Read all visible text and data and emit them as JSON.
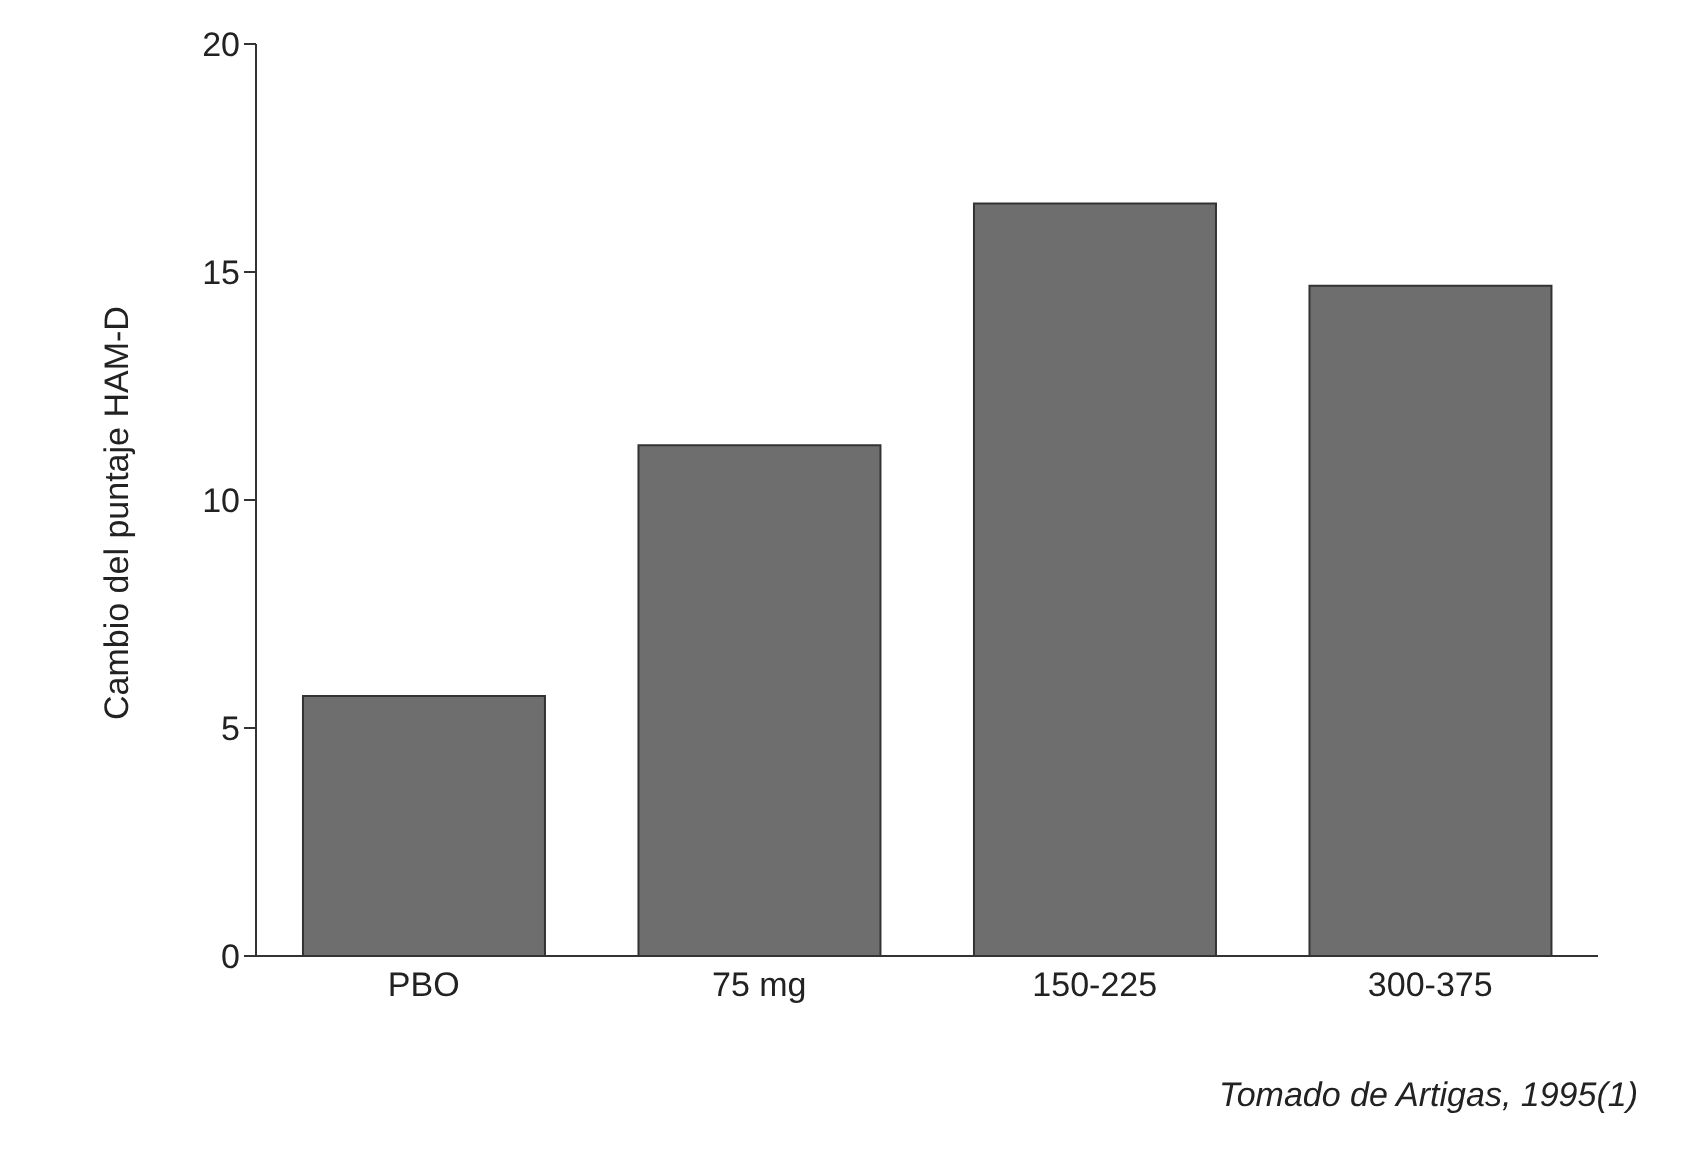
{
  "chart_data": {
    "type": "bar",
    "ylabel": "Cambio del puntaje HAM-D",
    "categories": [
      "PBO",
      "75 mg",
      "150-225",
      "300-375"
    ],
    "values": [
      5.7,
      11.2,
      16.5,
      14.7
    ],
    "color": "#6e6e6e",
    "ylim": [
      0,
      20
    ],
    "yticks": [
      0,
      5,
      10,
      15,
      20
    ],
    "grid": false,
    "annotations": [
      "Tomado de Artigas, 1995(1)"
    ]
  }
}
